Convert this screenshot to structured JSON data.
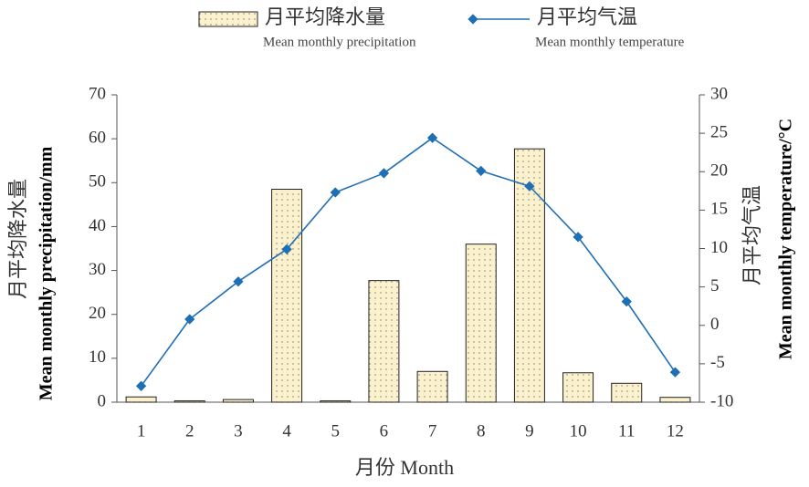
{
  "chart_data": {
    "type": "combo",
    "xlabel": "月份 Month",
    "ylabel": "Mean monthly precipitation/mm",
    "ylabel_zh": "月平均降水量",
    "y2label": "Mean monthly temperature/°C",
    "y2label_zh": "月平均气温",
    "categories": [
      "1",
      "2",
      "3",
      "4",
      "5",
      "6",
      "7",
      "8",
      "9",
      "10",
      "11",
      "12"
    ],
    "series": [
      {
        "name": "月平均降水量",
        "name_en": "Mean monthly precipitation",
        "type": "bar",
        "color": "#fbf1cc",
        "values": [
          1.2,
          0.3,
          0.6,
          48.5,
          0.3,
          27.7,
          7.0,
          36.0,
          57.7,
          6.7,
          4.3,
          1.1
        ]
      },
      {
        "name": "月平均气温",
        "name_en": "Mean monthly temperature",
        "type": "line",
        "axis": "y2",
        "color": "#1f6fb5",
        "values": [
          -7.9,
          0.8,
          5.7,
          9.9,
          17.3,
          19.8,
          24.4,
          20.1,
          18.1,
          11.5,
          3.1,
          -6.1
        ]
      }
    ],
    "ylim": [
      0,
      70
    ],
    "yticks": [
      0,
      10,
      20,
      30,
      40,
      50,
      60,
      70
    ],
    "y2lim": [
      -10,
      30
    ],
    "y2ticks": [
      -10,
      -5,
      0,
      5,
      10,
      15,
      20,
      25,
      30
    ],
    "grid": false
  }
}
